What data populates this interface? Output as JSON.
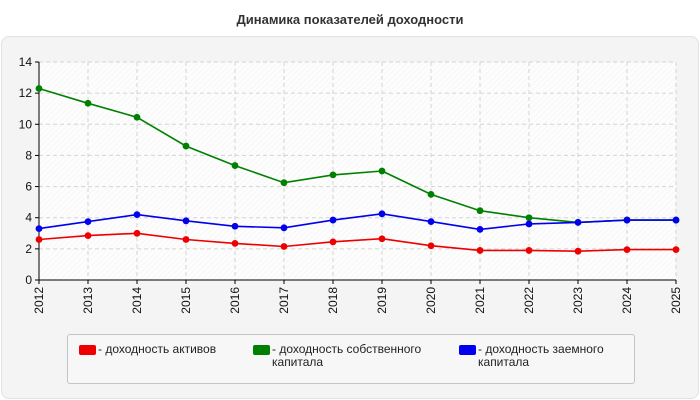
{
  "chart_data": {
    "type": "line",
    "title": "Динамика показателей доходности",
    "xlabel": "",
    "ylabel": "",
    "categories": [
      "2012",
      "2013",
      "2014",
      "2015",
      "2016",
      "2017",
      "2018",
      "2019",
      "2020",
      "2021",
      "2022",
      "2023",
      "2024",
      "2025"
    ],
    "ylim": [
      0,
      14
    ],
    "yticks": [
      0,
      2,
      4,
      6,
      8,
      10,
      12,
      14
    ],
    "grid": true,
    "legend_position": "bottom",
    "series": [
      {
        "name": "- доходность активов",
        "color": "#ee0000",
        "values": [
          2.6,
          2.85,
          3.0,
          2.6,
          2.35,
          2.15,
          2.45,
          2.65,
          2.2,
          1.9,
          1.9,
          1.85,
          1.95,
          1.95
        ]
      },
      {
        "name": "- доходность собственного капитала",
        "color": "#008000",
        "values": [
          12.3,
          11.35,
          10.45,
          8.6,
          7.35,
          6.25,
          6.75,
          7.0,
          5.5,
          4.45,
          4.0,
          3.7,
          3.85,
          3.85
        ]
      },
      {
        "name": "- доходность заемного капитала",
        "color": "#0000ee",
        "values": [
          3.3,
          3.75,
          4.2,
          3.8,
          3.45,
          3.35,
          3.85,
          4.25,
          3.75,
          3.25,
          3.6,
          3.7,
          3.85,
          3.85
        ]
      }
    ]
  }
}
